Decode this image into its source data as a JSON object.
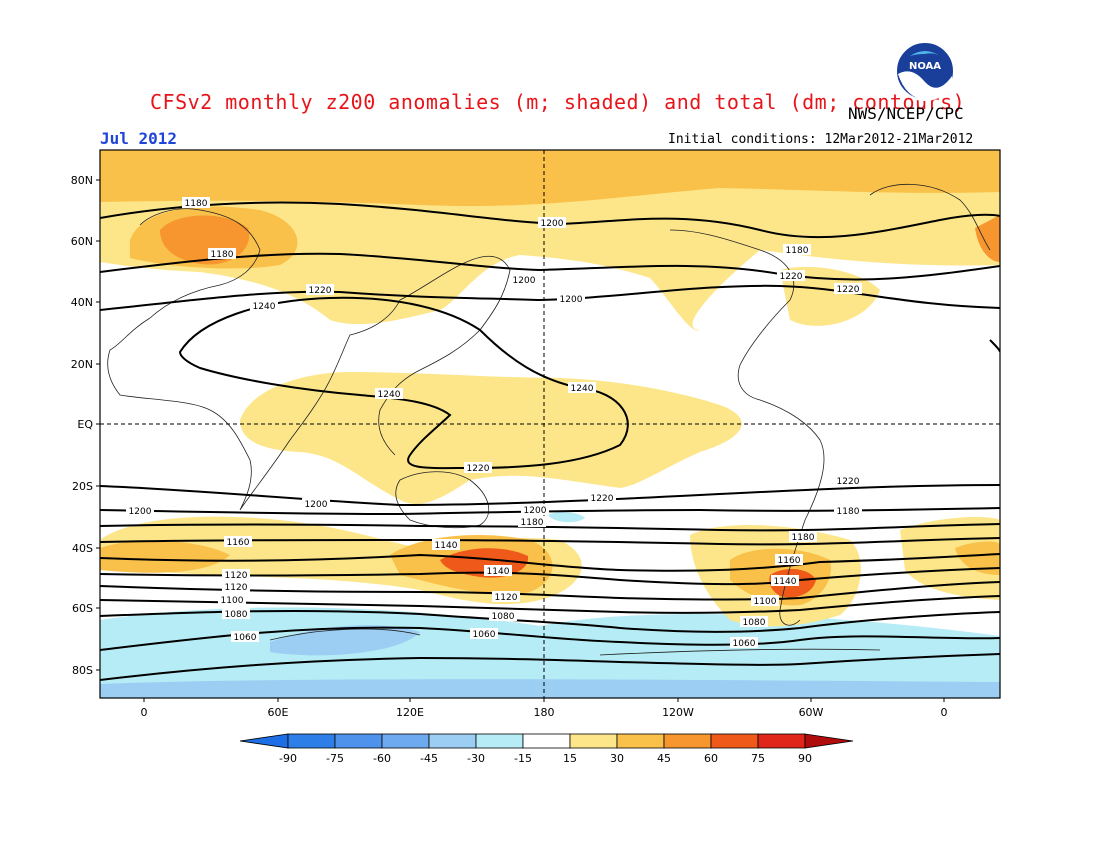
{
  "header": {
    "title": "CFSv2 monthly z200 anomalies (m; shaded) and total (dm; contours)",
    "agency": "NWS/NCEP/CPC",
    "month": "Jul 2012",
    "initial_conditions": "Initial conditions: 12Mar2012-21Mar2012",
    "logo_text": "NOAA"
  },
  "map": {
    "lat_labels": [
      "80N",
      "60N",
      "40N",
      "20N",
      "EQ",
      "20S",
      "40S",
      "60S",
      "80S"
    ],
    "lon_labels": [
      "0",
      "60E",
      "120E",
      "180",
      "120W",
      "60W",
      "0"
    ],
    "contour_labels": [
      "1180",
      "1200",
      "1180",
      "1180",
      "1200",
      "1220",
      "1240",
      "1220",
      "1200",
      "1220",
      "1240",
      "1240",
      "1220",
      "1220",
      "1220",
      "1200",
      "1200",
      "1200",
      "1180",
      "1180",
      "1160",
      "1180",
      "1140",
      "1160",
      "1140",
      "1140",
      "1120",
      "1120",
      "1120",
      "1100",
      "1100",
      "1080",
      "1080",
      "1080",
      "1060",
      "1060",
      "1060"
    ]
  },
  "colorbar": {
    "labels": [
      "-90",
      "-75",
      "-60",
      "-45",
      "-30",
      "-15",
      "15",
      "30",
      "45",
      "60",
      "75",
      "90"
    ],
    "colors": [
      "#1e6ee6",
      "#2e7ee8",
      "#4f92ec",
      "#6eaaf0",
      "#9ccdf3",
      "#b6ecf5",
      "#ffffff",
      "#fde68a",
      "#fac14a",
      "#f7962f",
      "#ef5a1a",
      "#e0261a",
      "#b00c0c"
    ]
  }
}
